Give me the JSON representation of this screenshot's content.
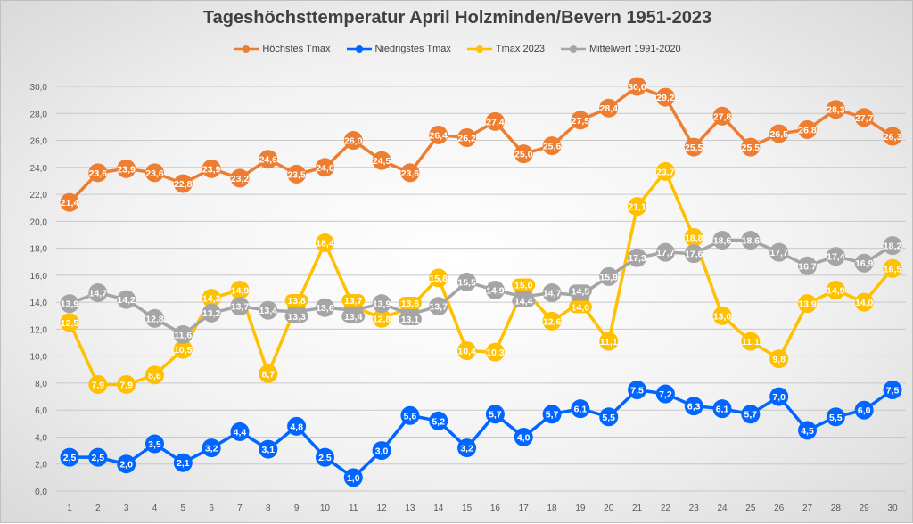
{
  "chart_data": {
    "type": "line",
    "title": "Tageshöchsttemperatur April Holzminden/Bevern 1951-2023",
    "xlabel": "",
    "ylabel": "",
    "ylim": [
      0,
      30
    ],
    "yticks": [
      "0,0",
      "2,0",
      "4,0",
      "6,0",
      "8,0",
      "10,0",
      "12,0",
      "14,0",
      "16,0",
      "18,0",
      "20,0",
      "22,0",
      "24,0",
      "26,0",
      "28,0",
      "30,0"
    ],
    "grid": true,
    "legend_position": "top",
    "categories": [
      1,
      2,
      3,
      4,
      5,
      6,
      7,
      8,
      9,
      10,
      11,
      12,
      13,
      14,
      15,
      16,
      17,
      18,
      19,
      20,
      21,
      22,
      23,
      24,
      25,
      26,
      27,
      28,
      29,
      30
    ],
    "series": [
      {
        "name": "Höchstes Tmax",
        "color": "#ed7d31",
        "values": [
          21.4,
          23.6,
          23.9,
          23.6,
          22.8,
          23.9,
          23.2,
          24.6,
          23.5,
          24.0,
          26.0,
          24.5,
          23.6,
          26.4,
          26.2,
          27.4,
          25.0,
          25.6,
          27.5,
          28.4,
          30.0,
          29.2,
          25.5,
          27.8,
          25.5,
          26.5,
          26.8,
          28.3,
          27.7,
          26.3
        ]
      },
      {
        "name": "Niedrigstes Tmax",
        "color": "#0066ff",
        "values": [
          2.5,
          2.5,
          2.0,
          3.5,
          2.1,
          3.2,
          4.4,
          3.1,
          4.8,
          2.5,
          1.0,
          3.0,
          5.6,
          5.2,
          3.2,
          5.7,
          4.0,
          5.7,
          6.1,
          5.5,
          7.5,
          7.2,
          6.3,
          6.1,
          5.7,
          7.0,
          4.5,
          5.5,
          6.0,
          7.5
        ]
      },
      {
        "name": "Tmax 2023",
        "color": "#ffc000",
        "values": [
          12.5,
          7.9,
          7.9,
          8.6,
          10.5,
          14.3,
          14.9,
          8.7,
          13.8,
          18.4,
          13.7,
          12.8,
          13.6,
          15.8,
          10.4,
          10.3,
          15.0,
          12.6,
          14.0,
          11.1,
          21.1,
          23.7,
          18.8,
          13.0,
          11.1,
          9.8,
          13.9,
          14.9,
          14.0,
          16.5
        ]
      },
      {
        "name": "Mittelwert 1991-2020",
        "color": "#a5a5a5",
        "values": [
          13.9,
          14.7,
          14.2,
          12.8,
          11.6,
          13.2,
          13.7,
          13.4,
          13.3,
          13.6,
          13.4,
          13.9,
          13.1,
          13.7,
          15.5,
          14.9,
          14.4,
          14.7,
          14.5,
          15.9,
          17.3,
          17.7,
          17.6,
          18.6,
          18.6,
          17.7,
          16.7,
          17.4,
          16.9,
          18.2
        ]
      }
    ]
  }
}
